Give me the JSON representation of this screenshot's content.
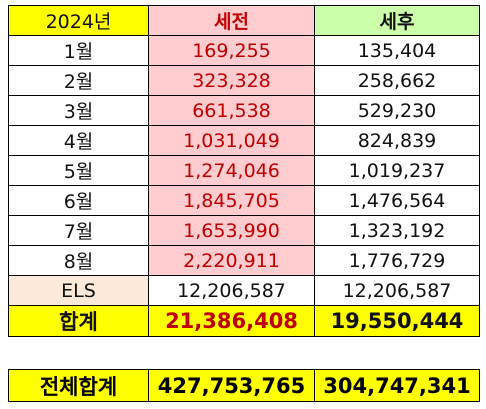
{
  "header": {
    "year": "2024년",
    "before_tax": "세전",
    "after_tax": "세후"
  },
  "rows": [
    {
      "label": "1월",
      "before": "169,255",
      "after": "135,404"
    },
    {
      "label": "2월",
      "before": "323,328",
      "after": "258,662"
    },
    {
      "label": "3월",
      "before": "661,538",
      "after": "529,230"
    },
    {
      "label": "4월",
      "before": "1,031,049",
      "after": "824,839"
    },
    {
      "label": "5월",
      "before": "1,274,046",
      "after": "1,019,237"
    },
    {
      "label": "6월",
      "before": "1,845,705",
      "after": "1,476,564"
    },
    {
      "label": "7월",
      "before": "1,653,990",
      "after": "1,323,192"
    },
    {
      "label": "8월",
      "before": "2,220,911",
      "after": "1,776,729"
    },
    {
      "label": "ELS",
      "before": "12,206,587",
      "after": "12,206,587"
    }
  ],
  "sum": {
    "label": "합계",
    "before": "21,386,408",
    "after": "19,550,444"
  },
  "grand_total": {
    "label": "전체합계",
    "before": "427,753,765",
    "after": "304,747,341"
  },
  "colors": {
    "yellow": "#ffff00",
    "pink": "#ffccd0",
    "green": "#ccffaa",
    "peach": "#fde9d9",
    "red_text": "#c00000"
  }
}
